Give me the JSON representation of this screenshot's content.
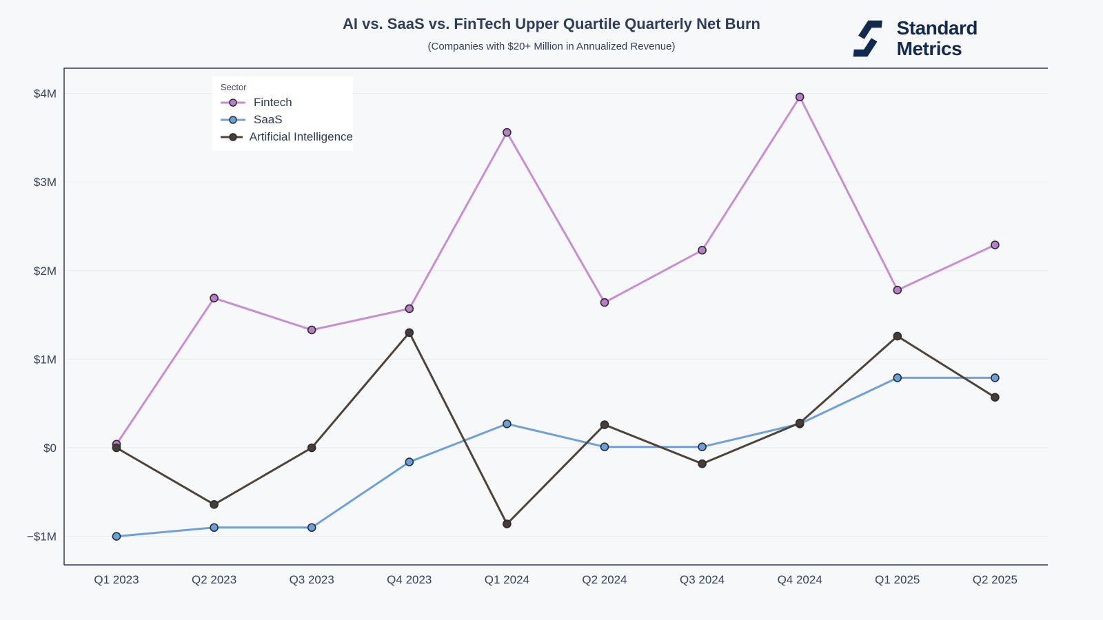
{
  "brand": {
    "line1": "Standard",
    "line2": "Metrics",
    "color": "#132a4f"
  },
  "chart_data": {
    "type": "line",
    "title": "AI vs. SaaS vs. FinTech Upper Quartile Quarterly Net Burn",
    "subtitle": "(Companies with $20+ Million in Annualized Revenue)",
    "legend_title": "Sector",
    "legend_position": "top-left",
    "grid": "horizontal",
    "unit": "millions USD",
    "ylim": [
      -1.32,
      4.29
    ],
    "x_categories": [
      "Q1 2023",
      "Q2 2023",
      "Q3 2023",
      "Q4 2023",
      "Q1 2024",
      "Q2 2024",
      "Q3 2024",
      "Q4 2024",
      "Q1 2025",
      "Q2 2025"
    ],
    "y_ticks": [
      {
        "value": 4,
        "label": "$4M"
      },
      {
        "value": 3,
        "label": "$3M"
      },
      {
        "value": 2,
        "label": "$2M"
      },
      {
        "value": 1,
        "label": "$1M"
      },
      {
        "value": 0,
        "label": "$0"
      },
      {
        "value": -1,
        "label": "−$1M"
      }
    ],
    "series": [
      {
        "name": "Fintech",
        "line_color": "#c78fd2",
        "marker_color": "#b77fc6",
        "values": [
          0.04,
          1.69,
          1.33,
          1.57,
          3.56,
          1.64,
          2.23,
          3.96,
          1.78,
          2.29
        ]
      },
      {
        "name": "SaaS",
        "line_color": "#6fa1d8",
        "marker_color": "#66a1da",
        "values": [
          -1.0,
          -0.9,
          -0.9,
          -0.16,
          0.27,
          0.01,
          0.01,
          0.27,
          0.79,
          0.79
        ]
      },
      {
        "name": "Artificial Intelligence",
        "line_color": "#4d4339",
        "marker_color": "#463d35",
        "values": [
          0.0,
          -0.64,
          0.0,
          1.3,
          -0.86,
          0.26,
          -0.18,
          0.28,
          1.26,
          0.57
        ]
      }
    ],
    "colors": {
      "axis_frame": "#2c3a54",
      "grid_line": "#e9ebed",
      "background": "#f7f8f9",
      "marker_outline": "#2d2a33"
    }
  }
}
